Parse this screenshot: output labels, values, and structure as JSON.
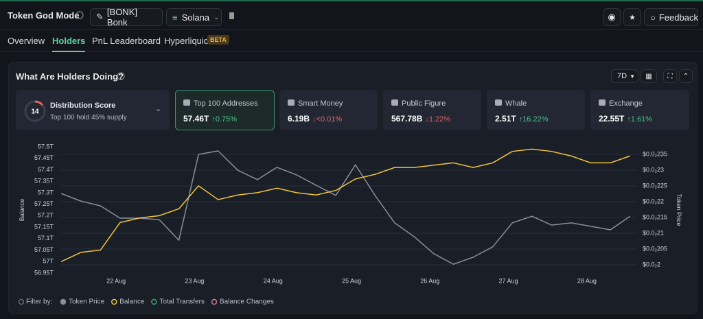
{
  "header": {
    "title": "Token God Mode",
    "token": "[BONK] Bonk",
    "chain": "Solana",
    "feedback": "Feedback"
  },
  "tabs": {
    "items": [
      "Overview",
      "Holders",
      "PnL Leaderboard",
      "Hyperliquid"
    ],
    "active": 1,
    "badge": "BETA"
  },
  "panel": {
    "title": "What Are Holders Doing?",
    "timeframe": "7D"
  },
  "distribution": {
    "label": "Distribution Score",
    "score": 14,
    "note": "Top 100 hold 45% supply"
  },
  "cards": {
    "selected": 0,
    "items": [
      {
        "label": "Top 100 Addresses",
        "value": "57.46T",
        "change": "0.75%",
        "direction": "up"
      },
      {
        "label": "Smart Money",
        "value": "6.19B",
        "change": "<0.01%",
        "direction": "down"
      },
      {
        "label": "Public Figure",
        "value": "567.78B",
        "change": "1.22%",
        "direction": "down"
      },
      {
        "label": "Whale",
        "value": "2.51T",
        "change": "16.22%",
        "direction": "up"
      },
      {
        "label": "Exchange",
        "value": "22.55T",
        "change": "1.61%",
        "direction": "up"
      }
    ]
  },
  "chart_data": {
    "type": "line",
    "y_label": "Balance",
    "y2_label": "Token Price",
    "grid": true,
    "x": [
      21.3,
      21.55,
      21.8,
      22.05,
      22.3,
      22.55,
      22.8,
      23.05,
      23.3,
      23.55,
      23.8,
      24.05,
      24.3,
      24.55,
      24.8,
      25.05,
      25.3,
      25.55,
      25.8,
      26.05,
      26.3,
      26.55,
      26.8,
      27.05,
      27.3,
      27.55,
      27.8,
      28.05,
      28.3,
      28.55
    ],
    "xlim": [
      21.29,
      28.64
    ],
    "xticks": [
      {
        "value": 22,
        "label": "22 Aug"
      },
      {
        "value": 23,
        "label": "23 Aug"
      },
      {
        "value": 24,
        "label": "24 Aug"
      },
      {
        "value": 25,
        "label": "25 Aug"
      },
      {
        "value": 26,
        "label": "26 Aug"
      },
      {
        "value": 27,
        "label": "27 Aug"
      },
      {
        "value": 28,
        "label": "28 Aug"
      }
    ],
    "ylim": [
      56.95,
      57.5
    ],
    "yticks": [
      {
        "value": 57.5,
        "label": "57.5T"
      },
      {
        "value": 57.45,
        "label": "57.45T"
      },
      {
        "value": 57.4,
        "label": "57.4T"
      },
      {
        "value": 57.35,
        "label": "57.35T"
      },
      {
        "value": 57.3,
        "label": "57.3T"
      },
      {
        "value": 57.25,
        "label": "57.25T"
      },
      {
        "value": 57.2,
        "label": "57.2T"
      },
      {
        "value": 57.15,
        "label": "57.15T"
      },
      {
        "value": 57.1,
        "label": "57.1T"
      },
      {
        "value": 57.05,
        "label": "57.05T"
      },
      {
        "value": 57,
        "label": "57T"
      },
      {
        "value": 56.95,
        "label": "56.95T"
      }
    ],
    "y2lim": [
      0.001974,
      0.002374
    ],
    "y2ticks": [
      {
        "value": 0.00235,
        "label": "$0.0₂235"
      },
      {
        "value": 0.0023,
        "label": "$0.0₂23"
      },
      {
        "value": 0.00225,
        "label": "$0.0₂225"
      },
      {
        "value": 0.0022,
        "label": "$0.0₂22"
      },
      {
        "value": 0.00215,
        "label": "$0.0₂215"
      },
      {
        "value": 0.0021,
        "label": "$0.0₂21"
      },
      {
        "value": 0.00205,
        "label": "$0.0₂205"
      },
      {
        "value": 0.002,
        "label": "$0.0₂2"
      }
    ],
    "series": [
      {
        "name": "Token Price",
        "color": "#8b8f98",
        "axis": "y2",
        "values": [
          0.002226,
          0.002202,
          0.002187,
          0.002148,
          0.002148,
          0.002143,
          0.002078,
          0.00235,
          0.002361,
          0.0023,
          0.00227,
          0.002309,
          0.002285,
          0.002252,
          0.00222,
          0.002317,
          0.00222,
          0.002133,
          0.002089,
          0.002035,
          0.002002,
          0.002024,
          0.002057,
          0.002133,
          0.002154,
          0.002126,
          0.002133,
          0.002122,
          0.002111,
          0.002154
        ]
      },
      {
        "name": "Balance",
        "color": "#f0c53a",
        "values": [
          57.0,
          57.04,
          57.05,
          57.17,
          57.19,
          57.2,
          57.23,
          57.33,
          57.27,
          57.29,
          57.3,
          57.32,
          57.3,
          57.29,
          57.31,
          57.36,
          57.38,
          57.41,
          57.41,
          57.42,
          57.43,
          57.41,
          57.43,
          57.48,
          57.49,
          57.48,
          57.46,
          57.43,
          57.43,
          57.46
        ]
      }
    ],
    "filter_label": "Filter by:",
    "other_filters": [
      {
        "name": "Total Transfers",
        "color": "#3fa07c"
      },
      {
        "name": "Balance Changes",
        "color": "#d9738f"
      }
    ]
  }
}
